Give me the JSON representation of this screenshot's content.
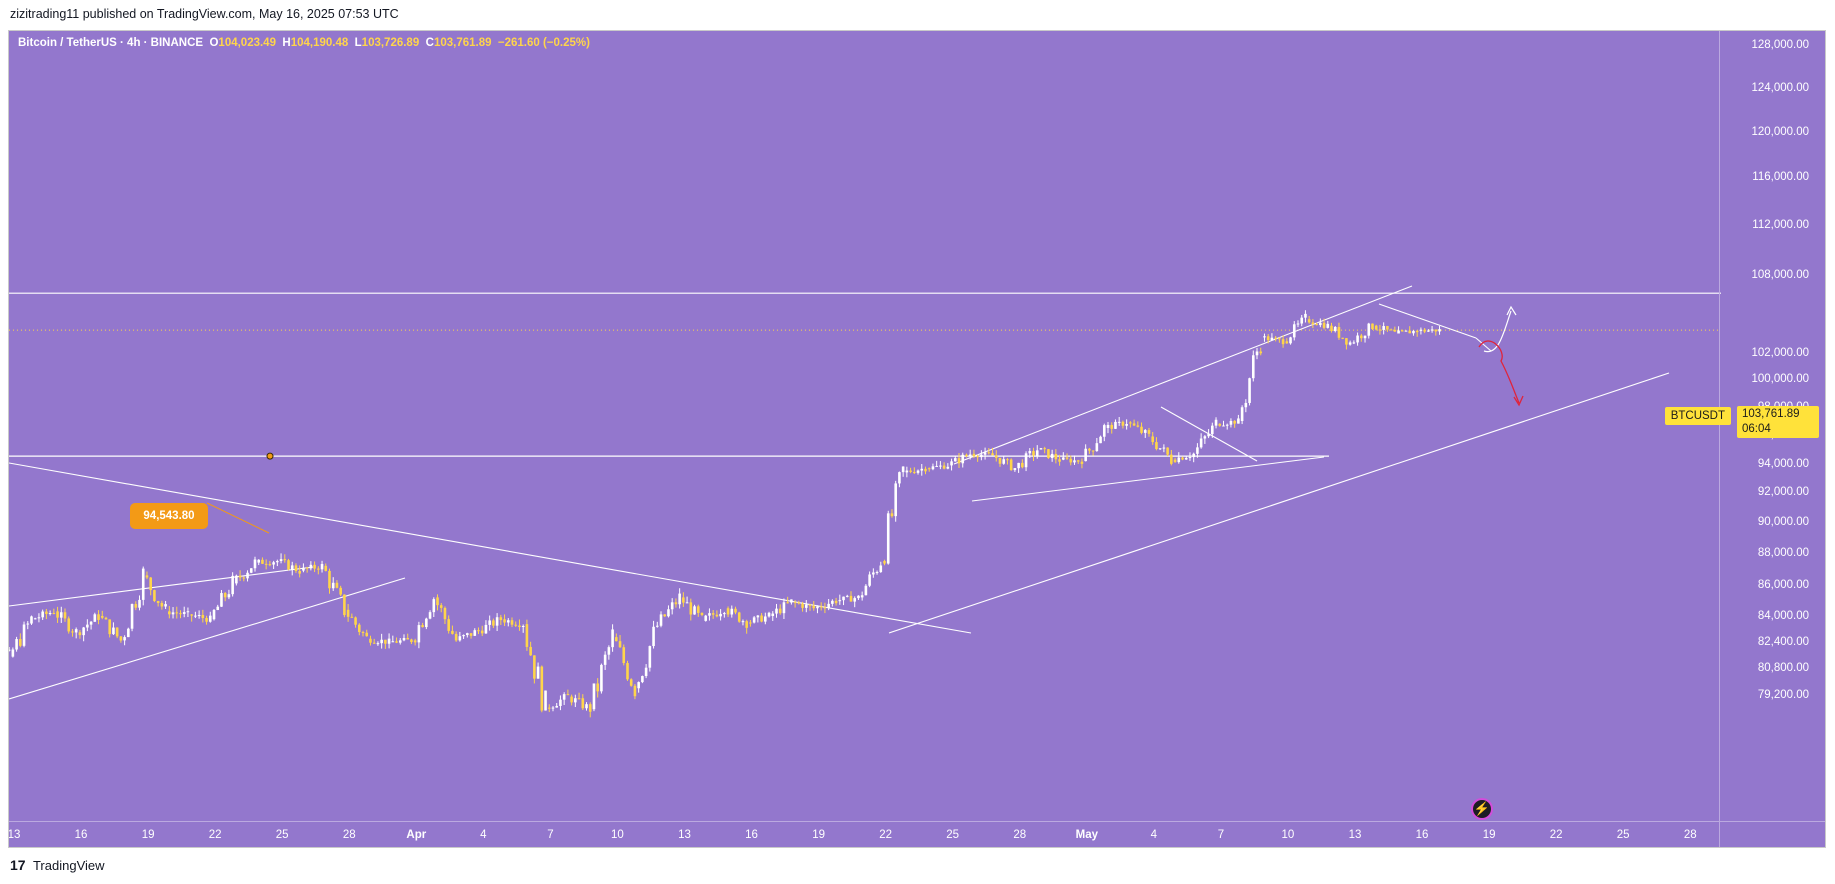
{
  "publisher": {
    "line": "zizitrading11 published on TradingView.com, May 16, 2025 07:53 UTC"
  },
  "symbol": {
    "name": "Bitcoin / TetherUS · 4h · BINANCE",
    "o_label": "O",
    "o_value": "104,023.49",
    "h_label": "H",
    "h_value": "104,190.48",
    "l_label": "L",
    "l_value": "103,726.89",
    "c_label": "C",
    "c_value": "103,761.89",
    "change": "−261.60 (−0.25%)"
  },
  "price_scale": {
    "labels": [
      {
        "value": 128000,
        "text": "128,000.00"
      },
      {
        "value": 124000,
        "text": "124,000.00"
      },
      {
        "value": 120000,
        "text": "120,000.00"
      },
      {
        "value": 116000,
        "text": "116,000.00"
      },
      {
        "value": 112000,
        "text": "112,000.00"
      },
      {
        "value": 108000,
        "text": "108,000.00"
      },
      {
        "value": 102000,
        "text": "102,000.00"
      },
      {
        "value": 100000,
        "text": "100,000.00"
      },
      {
        "value": 98000,
        "text": "98,000.00"
      },
      {
        "value": 96000,
        "text": "96,000.00"
      },
      {
        "value": 94000,
        "text": "94,000.00"
      },
      {
        "value": 92000,
        "text": "92,000.00"
      },
      {
        "value": 90000,
        "text": "90,000.00"
      },
      {
        "value": 88000,
        "text": "88,000.00"
      },
      {
        "value": 86000,
        "text": "86,000.00"
      },
      {
        "value": 84000,
        "text": "84,000.00"
      },
      {
        "value": 82400,
        "text": "82,400.00"
      },
      {
        "value": 80800,
        "text": "80,800.00"
      },
      {
        "value": 79200,
        "text": "79,200.00"
      }
    ],
    "current_price": "103,761.89",
    "countdown": "06:04",
    "symbol_tag": "BTCUSDT"
  },
  "time_scale": {
    "labels": [
      "13",
      "16",
      "19",
      "22",
      "25",
      "28",
      "Apr",
      "4",
      "7",
      "10",
      "13",
      "16",
      "19",
      "22",
      "25",
      "28",
      "May",
      "4",
      "7",
      "10",
      "13",
      "16",
      "19",
      "22",
      "25",
      "28"
    ]
  },
  "annotation": {
    "price_label": "94,543.80"
  },
  "footer": {
    "brand": "TradingView",
    "logo": "17"
  },
  "colors": {
    "background": "#9377cd",
    "candle_up": "#ffffff",
    "candle_down": "#ffd54a",
    "accent_yellow": "#ffe23a",
    "annotation_orange": "#f39a16",
    "arrow_red": "#e0243b"
  },
  "chart_data": {
    "type": "candlestick",
    "symbol": "BTCUSDT",
    "interval": "4h",
    "ylim": [
      78400,
      130600
    ],
    "x_dates": [
      "Mar 13",
      "Mar 16",
      "Mar 19",
      "Mar 22",
      "Mar 25",
      "Mar 28",
      "Apr 1",
      "Apr 4",
      "Apr 7",
      "Apr 10",
      "Apr 13",
      "Apr 16",
      "Apr 19",
      "Apr 22",
      "Apr 25",
      "Apr 28",
      "May 1",
      "May 4",
      "May 7",
      "May 10",
      "May 13",
      "May 16",
      "May 19",
      "May 22",
      "May 25",
      "May 28"
    ],
    "daily_close_path": [
      {
        "date": "Mar 12",
        "close": 83000
      },
      {
        "date": "Mar 13",
        "close": 81500
      },
      {
        "date": "Mar 14",
        "close": 83800
      },
      {
        "date": "Mar 15",
        "close": 84300
      },
      {
        "date": "Mar 16",
        "close": 83000
      },
      {
        "date": "Mar 17",
        "close": 84000
      },
      {
        "date": "Mar 18",
        "close": 82500
      },
      {
        "date": "Mar 19",
        "close": 86600
      },
      {
        "date": "Mar 20",
        "close": 84300
      },
      {
        "date": "Mar 21",
        "close": 84100
      },
      {
        "date": "Mar 22",
        "close": 83800
      },
      {
        "date": "Mar 23",
        "close": 86100
      },
      {
        "date": "Mar 24",
        "close": 87400
      },
      {
        "date": "Mar 25",
        "close": 87500
      },
      {
        "date": "Mar 26",
        "close": 86900
      },
      {
        "date": "Mar 27",
        "close": 87200
      },
      {
        "date": "Mar 28",
        "close": 84400
      },
      {
        "date": "Mar 29",
        "close": 82600
      },
      {
        "date": "Mar 30",
        "close": 82400
      },
      {
        "date": "Mar 31",
        "close": 82500
      },
      {
        "date": "Apr 1",
        "close": 85200
      },
      {
        "date": "Apr 2",
        "close": 82500
      },
      {
        "date": "Apr 3",
        "close": 83100
      },
      {
        "date": "Apr 4",
        "close": 83800
      },
      {
        "date": "Apr 5",
        "close": 83500
      },
      {
        "date": "Apr 6",
        "close": 78400
      },
      {
        "date": "Apr 7",
        "close": 79100
      },
      {
        "date": "Apr 8",
        "close": 78300
      },
      {
        "date": "Apr 9",
        "close": 82700
      },
      {
        "date": "Apr 10",
        "close": 79600
      },
      {
        "date": "Apr 11",
        "close": 83400
      },
      {
        "date": "Apr 12",
        "close": 85200
      },
      {
        "date": "Apr 13",
        "close": 83700
      },
      {
        "date": "Apr 14",
        "close": 84500
      },
      {
        "date": "Apr 15",
        "close": 83600
      },
      {
        "date": "Apr 16",
        "close": 84000
      },
      {
        "date": "Apr 17",
        "close": 84900
      },
      {
        "date": "Apr 18",
        "close": 84500
      },
      {
        "date": "Apr 19",
        "close": 85000
      },
      {
        "date": "Apr 20",
        "close": 85200
      },
      {
        "date": "Apr 21",
        "close": 87500
      },
      {
        "date": "Apr 22",
        "close": 93400
      },
      {
        "date": "Apr 23",
        "close": 93700
      },
      {
        "date": "Apr 24",
        "close": 93900
      },
      {
        "date": "Apr 25",
        "close": 94700
      },
      {
        "date": "Apr 26",
        "close": 94600
      },
      {
        "date": "Apr 27",
        "close": 93700
      },
      {
        "date": "Apr 28",
        "close": 95000
      },
      {
        "date": "Apr 29",
        "close": 94300
      },
      {
        "date": "Apr 30",
        "close": 94200
      },
      {
        "date": "May 1",
        "close": 96500
      },
      {
        "date": "May 2",
        "close": 96900
      },
      {
        "date": "May 3",
        "close": 95900
      },
      {
        "date": "May 4",
        "close": 94300
      },
      {
        "date": "May 5",
        "close": 94700
      },
      {
        "date": "May 6",
        "close": 96800
      },
      {
        "date": "May 7",
        "close": 97000
      },
      {
        "date": "May 8",
        "close": 103200
      },
      {
        "date": "May 9",
        "close": 102900
      },
      {
        "date": "May 10",
        "close": 104600
      },
      {
        "date": "May 11",
        "close": 104100
      },
      {
        "date": "May 12",
        "close": 102800
      },
      {
        "date": "May 13",
        "close": 104100
      },
      {
        "date": "May 14",
        "close": 103500
      },
      {
        "date": "May 15",
        "close": 103700
      },
      {
        "date": "May 16",
        "close": 103761.89
      }
    ],
    "horizontal_levels": [
      106600,
      94543.8
    ],
    "current_price": 103761.89
  }
}
